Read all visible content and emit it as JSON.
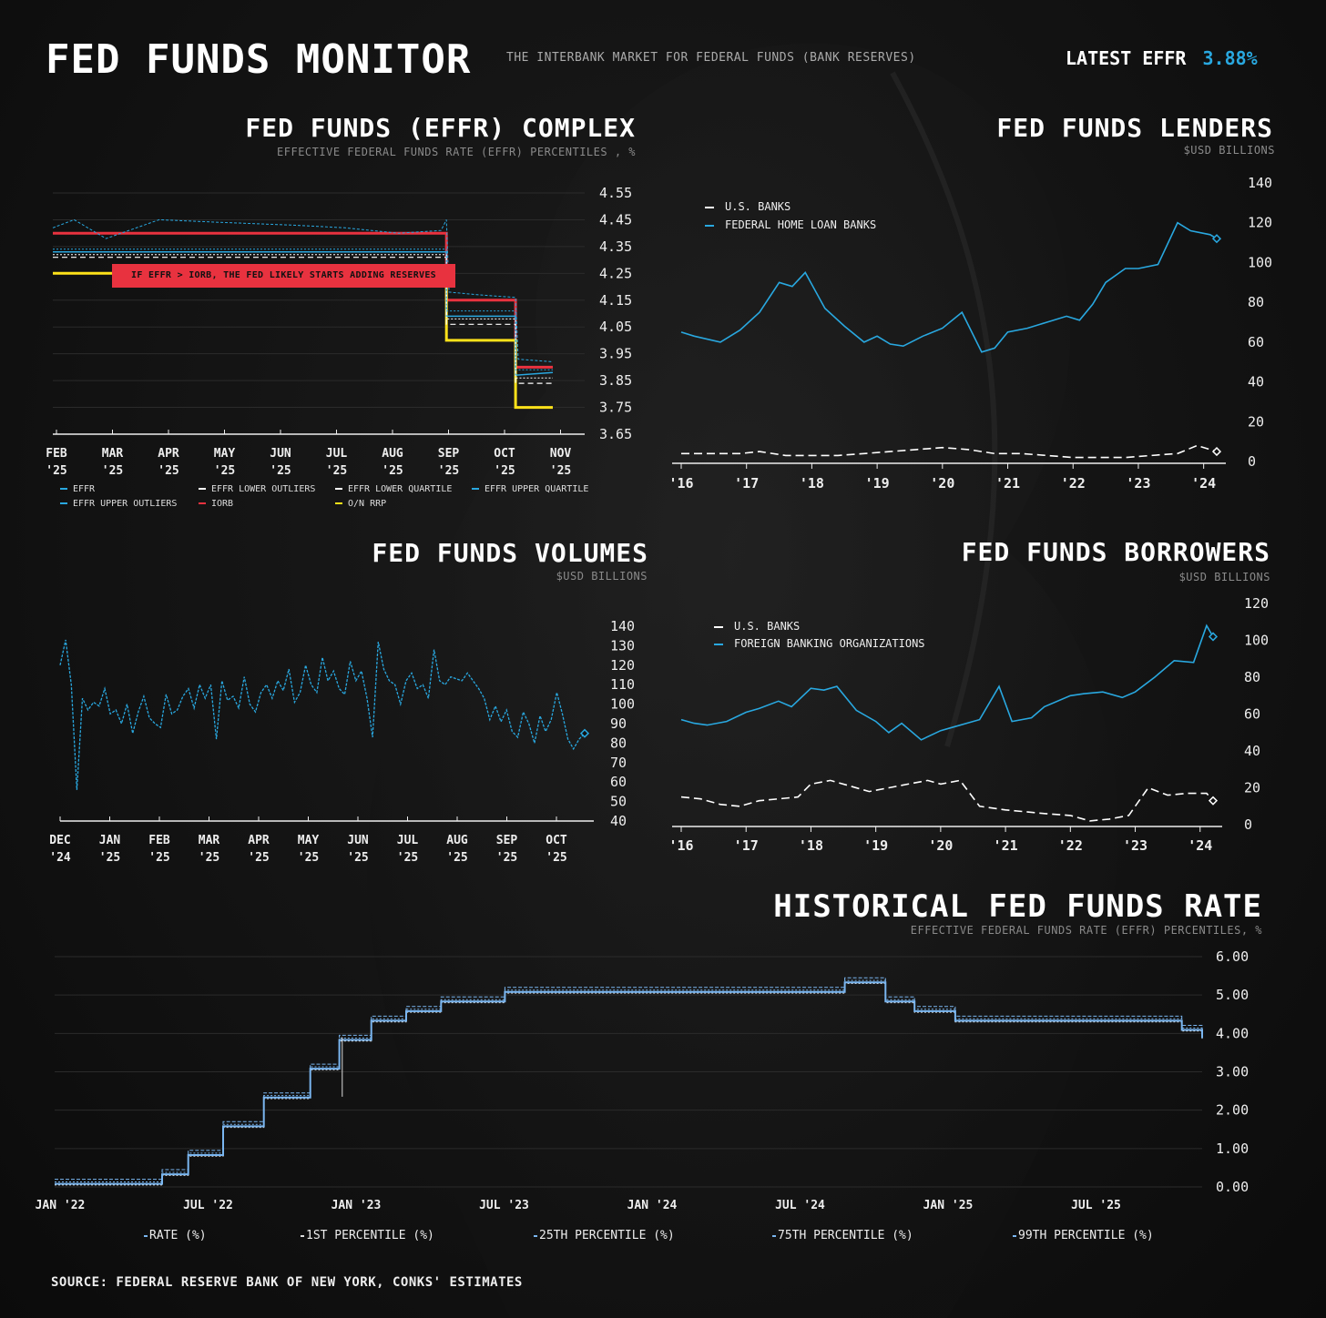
{
  "header": {
    "title": "FED FUNDS MONITOR",
    "subtitle": "THE INTERBANK MARKET FOR FEDERAL FUNDS (BANK RESERVES)",
    "latest_label": "LATEST EFFR",
    "latest_value": "3.88%"
  },
  "colors": {
    "blue": "#29a8e0",
    "red": "#e8323f",
    "yellow": "#ffe21a",
    "white": "#ffffff",
    "grid": "#2e2e2e"
  },
  "complex": {
    "title": "FED FUNDS (EFFR) COMPLEX",
    "subtitle": "EFFECTIVE FEDERAL FUNDS RATE (EFFR) PERCENTILES , %",
    "annotation": "IF EFFR > IORB, THE FED LIKELY STARTS ADDING RESERVES",
    "legend": [
      "EFFR",
      "EFFR LOWER OUTLIERS",
      "EFFR LOWER QUARTILE",
      "EFFR UPPER QUARTILE",
      "EFFR UPPER OUTLIERS",
      "IORB",
      "O/N RRP"
    ]
  },
  "lenders": {
    "title": "FED FUNDS LENDERS",
    "subtitle": "$USD BILLIONS",
    "legend": [
      "U.S. BANKS",
      "FEDERAL HOME LOAN BANKS"
    ]
  },
  "volumes": {
    "title": "FED FUNDS VOLUMES",
    "subtitle": "$USD BILLIONS"
  },
  "borrowers": {
    "title": "FED FUNDS BORROWERS",
    "subtitle": "$USD BILLIONS",
    "legend": [
      "U.S. BANKS",
      "FOREIGN BANKING ORGANIZATIONS"
    ]
  },
  "historical": {
    "title": "HISTORICAL FED FUNDS RATE",
    "subtitle": "EFFECTIVE FEDERAL FUNDS RATE (EFFR) PERCENTILES, %",
    "legend": [
      "RATE (%)",
      "1ST PERCENTILE (%)",
      "25TH PERCENTILE (%)",
      "75TH PERCENTILE (%)",
      "99TH PERCENTILE (%)"
    ]
  },
  "source": "SOURCE: FEDERAL RESERVE BANK OF NEW YORK, CONKS' ESTIMATES",
  "chart_data": [
    {
      "id": "complex",
      "type": "line",
      "title": "FED FUNDS (EFFR) COMPLEX",
      "ylabel": "EFFECTIVE FEDERAL FUNDS RATE (EFFR) PERCENTILES , %",
      "ylim": [
        3.65,
        4.55
      ],
      "yticks": [
        "4.55",
        "4.45",
        "4.35",
        "4.25",
        "4.15",
        "4.05",
        "3.95",
        "3.85",
        "3.75",
        "3.65"
      ],
      "xlim": [
        0,
        10
      ],
      "xticks": [
        {
          "m": "FEB",
          "y": "'25"
        },
        {
          "m": "MAR",
          "y": "'25"
        },
        {
          "m": "APR",
          "y": "'25"
        },
        {
          "m": "MAY",
          "y": "'25"
        },
        {
          "m": "JUN",
          "y": "'25"
        },
        {
          "m": "JUL",
          "y": "'25"
        },
        {
          "m": "AUG",
          "y": "'25"
        },
        {
          "m": "SEP",
          "y": "'25"
        },
        {
          "m": "OCT",
          "y": "'25"
        },
        {
          "m": "NOV",
          "y": "'25"
        }
      ],
      "series": [
        {
          "name": "IORB",
          "color": "#e8323f",
          "points": [
            [
              0,
              4.4
            ],
            [
              7.4,
              4.4
            ],
            [
              7.4,
              4.15
            ],
            [
              8.7,
              4.15
            ],
            [
              8.7,
              3.9
            ],
            [
              9.4,
              3.9
            ]
          ]
        },
        {
          "name": "O/N RRP",
          "color": "#ffe21a",
          "points": [
            [
              0,
              4.25
            ],
            [
              7.4,
              4.25
            ],
            [
              7.4,
              4.0
            ],
            [
              8.7,
              4.0
            ],
            [
              8.7,
              3.75
            ],
            [
              9.4,
              3.75
            ]
          ]
        },
        {
          "name": "EFFR",
          "color": "#29a8e0",
          "points": [
            [
              0,
              4.33
            ],
            [
              7.4,
              4.33
            ],
            [
              7.4,
              4.09
            ],
            [
              8.7,
              4.09
            ],
            [
              8.7,
              3.87
            ],
            [
              9.4,
              3.88
            ]
          ]
        },
        {
          "name": "EFFR LOWER OUTLIERS",
          "color": "#ffffff",
          "points": [
            [
              0,
              4.31
            ],
            [
              7.4,
              4.31
            ],
            [
              7.4,
              4.06
            ],
            [
              8.7,
              4.06
            ],
            [
              8.7,
              3.84
            ],
            [
              9.4,
              3.84
            ]
          ]
        },
        {
          "name": "EFFR LOWER QUARTILE",
          "color": "#ffffff",
          "points": [
            [
              0,
              4.32
            ],
            [
              7.4,
              4.32
            ],
            [
              7.4,
              4.08
            ],
            [
              8.7,
              4.08
            ],
            [
              8.7,
              3.86
            ],
            [
              9.4,
              3.86
            ]
          ]
        },
        {
          "name": "EFFR UPPER QUARTILE",
          "color": "#29a8e0",
          "points": [
            [
              0,
              4.34
            ],
            [
              7.4,
              4.34
            ],
            [
              7.4,
              4.11
            ],
            [
              8.7,
              4.11
            ],
            [
              8.7,
              3.89
            ],
            [
              9.4,
              3.89
            ]
          ]
        },
        {
          "name": "EFFR UPPER OUTLIERS",
          "color": "#29a8e0",
          "points": [
            [
              0,
              4.42
            ],
            [
              0.4,
              4.45
            ],
            [
              1,
              4.38
            ],
            [
              2,
              4.45
            ],
            [
              3.2,
              4.44
            ],
            [
              4.5,
              4.43
            ],
            [
              5.5,
              4.42
            ],
            [
              6.5,
              4.4
            ],
            [
              7.3,
              4.41
            ],
            [
              7.4,
              4.45
            ],
            [
              7.45,
              4.18
            ],
            [
              8.0,
              4.17
            ],
            [
              8.7,
              4.16
            ],
            [
              8.75,
              3.93
            ],
            [
              9.4,
              3.92
            ]
          ]
        }
      ]
    },
    {
      "id": "lenders",
      "type": "line",
      "title": "FED FUNDS LENDERS",
      "ylabel": "$USD BILLIONS",
      "ylim": [
        0,
        140
      ],
      "yticks": [
        "140",
        "120",
        "100",
        "80",
        "60",
        "40",
        "20",
        "0"
      ],
      "xlim": [
        2016,
        2024.2
      ],
      "xticks": [
        "'16",
        "'17",
        "'18",
        "'19",
        "'20",
        "'21",
        "'22",
        "'23",
        "'24"
      ],
      "series": [
        {
          "name": "U.S. BANKS",
          "color": "#ffffff",
          "x": [
            2016,
            2016.5,
            2016.9,
            2017.2,
            2017.6,
            2018,
            2018.4,
            2018.8,
            2019.2,
            2019.6,
            2020,
            2020.4,
            2020.8,
            2021.2,
            2021.6,
            2022,
            2022.4,
            2022.8,
            2023.2,
            2023.6,
            2023.9,
            2024.2
          ],
          "values": [
            4,
            4,
            4,
            5,
            3,
            3,
            3,
            4,
            5,
            6,
            7,
            6,
            4,
            4,
            3,
            2,
            2,
            2,
            3,
            4,
            8,
            5
          ]
        },
        {
          "name": "FEDERAL HOME LOAN BANKS",
          "color": "#29a8e0",
          "x": [
            2016,
            2016.2,
            2016.6,
            2016.9,
            2017.2,
            2017.5,
            2017.7,
            2017.9,
            2018.2,
            2018.5,
            2018.8,
            2019,
            2019.2,
            2019.4,
            2019.7,
            2020,
            2020.3,
            2020.6,
            2020.8,
            2021,
            2021.3,
            2021.6,
            2021.9,
            2022.1,
            2022.3,
            2022.5,
            2022.8,
            2023,
            2023.3,
            2023.6,
            2023.8,
            2024.1,
            2024.2
          ],
          "values": [
            65,
            63,
            60,
            66,
            75,
            90,
            88,
            95,
            77,
            68,
            60,
            63,
            59,
            58,
            63,
            67,
            75,
            55,
            57,
            65,
            67,
            70,
            73,
            71,
            79,
            90,
            97,
            97,
            99,
            120,
            116,
            114,
            112
          ]
        }
      ]
    },
    {
      "id": "volumes",
      "type": "line",
      "title": "FED FUNDS VOLUMES",
      "ylabel": "$USD BILLIONS",
      "ylim": [
        40,
        140
      ],
      "yticks": [
        "140",
        "130",
        "120",
        "110",
        "100",
        "90",
        "80",
        "70",
        "60",
        "50",
        "40"
      ],
      "xlim": [
        0,
        10.8
      ],
      "xticks": [
        {
          "m": "DEC",
          "y": "'24"
        },
        {
          "m": "JAN",
          "y": "'25"
        },
        {
          "m": "FEB",
          "y": "'25"
        },
        {
          "m": "MAR",
          "y": "'25"
        },
        {
          "m": "APR",
          "y": "'25"
        },
        {
          "m": "MAY",
          "y": "'25"
        },
        {
          "m": "JUN",
          "y": "'25"
        },
        {
          "m": "JUL",
          "y": "'25"
        },
        {
          "m": "AUG",
          "y": "'25"
        },
        {
          "m": "SEP",
          "y": "'25"
        },
        {
          "m": "OCT",
          "y": "'25"
        }
      ],
      "series": [
        {
          "name": "VOLUME",
          "color": "#29a8e0",
          "values": [
            120,
            133,
            110,
            56,
            103,
            97,
            101,
            99,
            108,
            95,
            97,
            90,
            100,
            85,
            96,
            104,
            93,
            90,
            88,
            105,
            95,
            97,
            104,
            108,
            98,
            110,
            103,
            110,
            82,
            112,
            102,
            104,
            98,
            114,
            100,
            96,
            106,
            110,
            103,
            112,
            107,
            118,
            101,
            106,
            120,
            110,
            106,
            124,
            112,
            117,
            108,
            105,
            122,
            112,
            117,
            103,
            83,
            132,
            118,
            112,
            110,
            100,
            112,
            116,
            108,
            110,
            103,
            128,
            112,
            110,
            114,
            113,
            112,
            116,
            112,
            108,
            103,
            92,
            99,
            91,
            97,
            86,
            83,
            96,
            90,
            80,
            94,
            86,
            92,
            106,
            95,
            82,
            77,
            82,
            85
          ]
        }
      ]
    },
    {
      "id": "borrowers",
      "type": "line",
      "title": "FED FUNDS BORROWERS",
      "ylabel": "$USD BILLIONS",
      "ylim": [
        0,
        120
      ],
      "yticks": [
        "120",
        "100",
        "80",
        "60",
        "40",
        "20",
        "0"
      ],
      "xlim": [
        2016,
        2024.2
      ],
      "xticks": [
        "'16",
        "'17",
        "'18",
        "'19",
        "'20",
        "'21",
        "'22",
        "'23",
        "'24"
      ],
      "series": [
        {
          "name": "U.S. BANKS",
          "color": "#ffffff",
          "x": [
            2016,
            2016.3,
            2016.6,
            2016.9,
            2017.2,
            2017.5,
            2017.8,
            2018,
            2018.3,
            2018.6,
            2018.9,
            2019.2,
            2019.5,
            2019.8,
            2020,
            2020.3,
            2020.6,
            2021,
            2021.3,
            2021.6,
            2022,
            2022.3,
            2022.6,
            2022.9,
            2023.2,
            2023.5,
            2023.8,
            2024.1,
            2024.2
          ],
          "values": [
            15,
            14,
            11,
            10,
            13,
            14,
            15,
            22,
            24,
            21,
            18,
            20,
            22,
            24,
            22,
            24,
            10,
            8,
            7,
            6,
            5,
            2,
            3,
            5,
            20,
            16,
            17,
            17,
            13
          ]
        },
        {
          "name": "FOREIGN BANKING ORGANIZATIONS",
          "color": "#29a8e0",
          "x": [
            2016,
            2016.2,
            2016.4,
            2016.7,
            2017,
            2017.2,
            2017.5,
            2017.7,
            2018,
            2018.2,
            2018.4,
            2018.7,
            2019,
            2019.2,
            2019.4,
            2019.7,
            2020,
            2020.2,
            2020.4,
            2020.6,
            2020.9,
            2021.1,
            2021.4,
            2021.6,
            2022,
            2022.2,
            2022.5,
            2022.8,
            2023,
            2023.3,
            2023.6,
            2023.9,
            2024.1,
            2024.2
          ],
          "values": [
            57,
            55,
            54,
            56,
            61,
            63,
            67,
            64,
            74,
            73,
            75,
            62,
            56,
            50,
            55,
            46,
            51,
            53,
            55,
            57,
            75,
            56,
            58,
            64,
            70,
            71,
            72,
            69,
            72,
            80,
            89,
            88,
            108,
            102
          ]
        }
      ]
    },
    {
      "id": "historical",
      "type": "line",
      "title": "HISTORICAL FED FUNDS RATE",
      "ylabel": "EFFECTIVE FEDERAL FUNDS RATE (EFFR) PERCENTILES, %",
      "ylim": [
        0,
        6
      ],
      "yticks": [
        "6.00",
        "5.00",
        "4.00",
        "3.00",
        "2.00",
        "1.00",
        "0.00"
      ],
      "xlim": [
        2022.0,
        2025.95
      ],
      "xticks": [
        "JAN '22",
        "JUL '22",
        "JAN '23",
        "JUL '23",
        "JAN '24",
        "JUL '24",
        "JAN '25",
        "JUL '25"
      ],
      "series": [
        {
          "name": "RATE (%)",
          "color": "#7ab6f0",
          "step_x": [
            2022.0,
            2022.2,
            2022.37,
            2022.46,
            2022.58,
            2022.72,
            2022.88,
            2022.98,
            2023.09,
            2023.21,
            2023.33,
            2023.55,
            2024.72,
            2024.86,
            2024.96,
            2025.1,
            2025.78,
            2025.88,
            2025.95
          ],
          "values": [
            0.08,
            0.08,
            0.33,
            0.83,
            1.58,
            2.33,
            3.08,
            3.83,
            4.33,
            4.58,
            4.83,
            5.08,
            5.33,
            4.83,
            4.58,
            4.33,
            4.33,
            4.09,
            3.88
          ]
        },
        {
          "name": "1ST PERCENTILE (%)",
          "color": "#dddddd"
        },
        {
          "name": "25TH PERCENTILE (%)",
          "color": "#7ab6f0"
        },
        {
          "name": "75TH PERCENTILE (%)",
          "color": "#7ab6f0"
        },
        {
          "name": "99TH PERCENTILE (%)",
          "color": "#7ab6f0"
        }
      ]
    }
  ]
}
